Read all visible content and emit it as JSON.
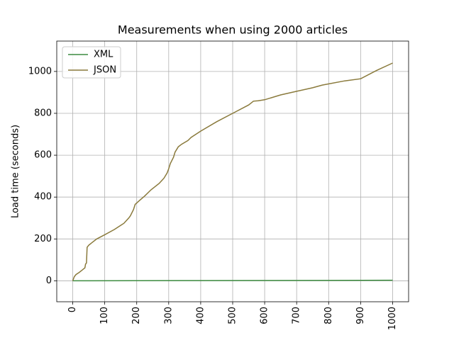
{
  "chart_data": {
    "type": "line",
    "title": "Measurements when using 2000 articles",
    "y_label": "Load time (seconds)",
    "xlim": [
      -50,
      1050
    ],
    "ylim": [
      -100,
      1145
    ],
    "xticks": [
      0,
      100,
      200,
      300,
      400,
      500,
      600,
      700,
      800,
      900,
      1000
    ],
    "yticks": [
      0,
      200,
      400,
      600,
      800,
      1000
    ],
    "grid": true,
    "legend": "upper left",
    "series": [
      {
        "name": "XML",
        "color": "#3d8c40",
        "x": [
          0,
          200,
          400,
          600,
          800,
          1000
        ],
        "values": [
          0,
          0.5,
          1,
          1.5,
          2,
          3
        ]
      },
      {
        "name": "JSON",
        "color": "#8a7a3c",
        "x": [
          0,
          5,
          10,
          20,
          30,
          38,
          40,
          43,
          45,
          50,
          60,
          75,
          100,
          130,
          150,
          160,
          175,
          180,
          190,
          195,
          210,
          225,
          245,
          270,
          285,
          295,
          300,
          305,
          315,
          320,
          330,
          340,
          360,
          370,
          400,
          450,
          500,
          550,
          565,
          580,
          600,
          650,
          700,
          750,
          780,
          850,
          900,
          950,
          1000
        ],
        "values": [
          0,
          20,
          30,
          40,
          52,
          62,
          80,
          85,
          160,
          170,
          182,
          200,
          220,
          245,
          265,
          275,
          300,
          310,
          340,
          365,
          385,
          405,
          435,
          465,
          490,
          515,
          535,
          560,
          590,
          615,
          640,
          652,
          670,
          685,
          715,
          760,
          800,
          840,
          858,
          860,
          865,
          888,
          905,
          922,
          935,
          955,
          965,
          1005,
          1040
        ]
      }
    ]
  }
}
